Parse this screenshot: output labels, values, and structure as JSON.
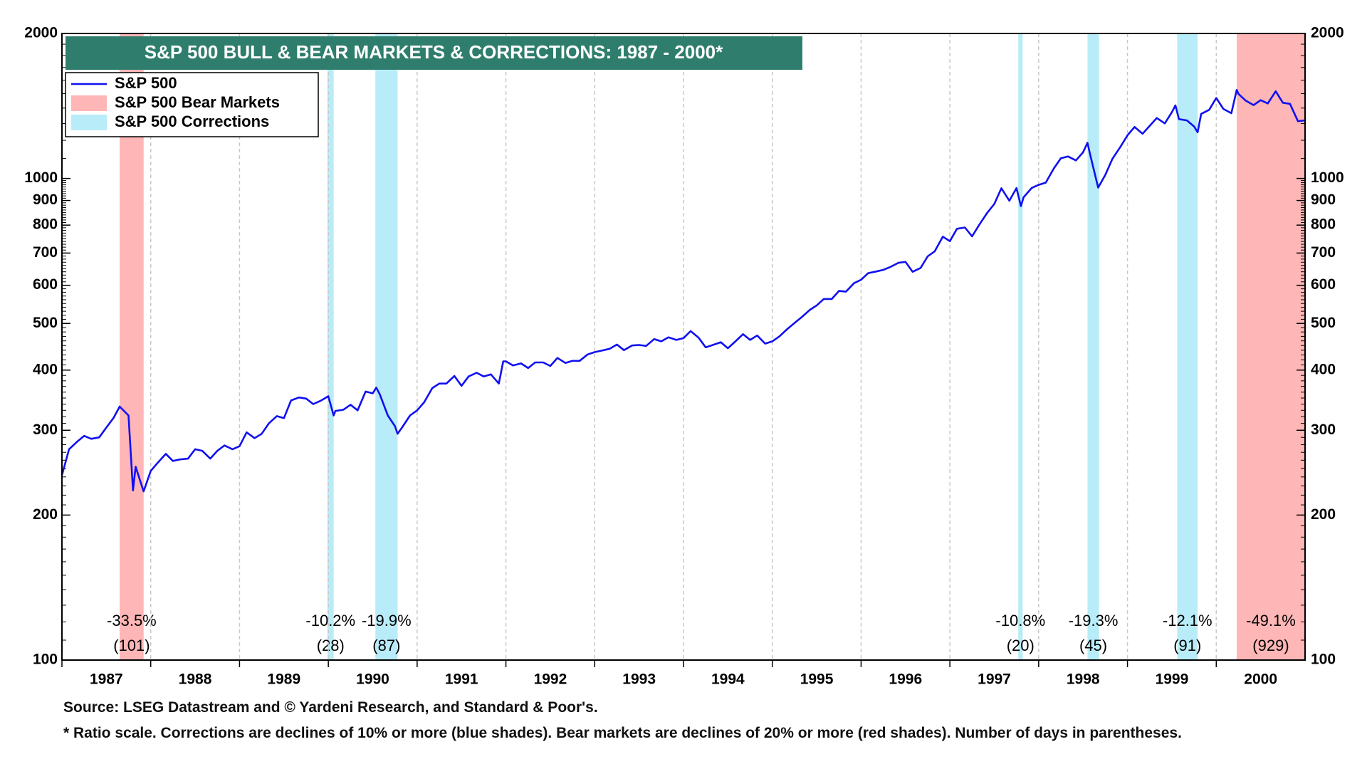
{
  "chart_data": {
    "type": "line",
    "title": "S&P 500 BULL & BEAR MARKETS & CORRECTIONS: 1987 - 2000*",
    "yscale": "log",
    "xgrid": true,
    "legend": "top-left",
    "xlim": [
      1987,
      2001
    ],
    "xticks": [
      1987,
      1988,
      1989,
      1990,
      1991,
      1992,
      1993,
      1994,
      1995,
      1996,
      1997,
      1998,
      1999,
      2000
    ],
    "ylim": [
      100,
      2000
    ],
    "yticks": [
      100,
      200,
      300,
      400,
      500,
      600,
      700,
      800,
      900,
      1000,
      2000
    ],
    "y2lim": [
      100,
      2000
    ],
    "y2ticks": [
      100,
      200,
      300,
      400,
      500,
      600,
      700,
      800,
      900,
      1000,
      2000
    ],
    "x": [
      1987.0,
      1987.08,
      1987.17,
      1987.25,
      1987.33,
      1987.42,
      1987.5,
      1987.58,
      1987.65,
      1987.75,
      1987.8,
      1987.83,
      1987.92,
      1988.0,
      1988.08,
      1988.17,
      1988.25,
      1988.33,
      1988.42,
      1988.5,
      1988.58,
      1988.67,
      1988.75,
      1988.83,
      1988.92,
      1989.0,
      1989.08,
      1989.17,
      1989.25,
      1989.33,
      1989.42,
      1989.5,
      1989.58,
      1989.67,
      1989.75,
      1989.83,
      1989.92,
      1990.0,
      1990.06,
      1990.08,
      1990.17,
      1990.25,
      1990.33,
      1990.42,
      1990.5,
      1990.54,
      1990.58,
      1990.67,
      1990.75,
      1990.78,
      1990.83,
      1990.92,
      1991.0,
      1991.08,
      1991.17,
      1991.25,
      1991.33,
      1991.42,
      1991.5,
      1991.58,
      1991.67,
      1991.75,
      1991.83,
      1991.92,
      1991.97,
      1992.0,
      1992.08,
      1992.17,
      1992.25,
      1992.33,
      1992.42,
      1992.5,
      1992.58,
      1992.67,
      1992.75,
      1992.83,
      1992.92,
      1993.0,
      1993.08,
      1993.17,
      1993.25,
      1993.33,
      1993.42,
      1993.5,
      1993.58,
      1993.67,
      1993.75,
      1993.83,
      1993.92,
      1994.0,
      1994.08,
      1994.17,
      1994.25,
      1994.33,
      1994.42,
      1994.5,
      1994.58,
      1994.67,
      1994.75,
      1994.83,
      1994.92,
      1995.0,
      1995.08,
      1995.17,
      1995.25,
      1995.33,
      1995.42,
      1995.5,
      1995.58,
      1995.67,
      1995.75,
      1995.83,
      1995.92,
      1996.0,
      1996.08,
      1996.17,
      1996.25,
      1996.33,
      1996.42,
      1996.5,
      1996.58,
      1996.67,
      1996.75,
      1996.83,
      1996.92,
      1997.0,
      1997.08,
      1997.17,
      1997.25,
      1997.33,
      1997.42,
      1997.5,
      1997.58,
      1997.67,
      1997.75,
      1997.8,
      1997.83,
      1997.92,
      1998.0,
      1998.08,
      1998.17,
      1998.25,
      1998.33,
      1998.42,
      1998.5,
      1998.55,
      1998.58,
      1998.67,
      1998.75,
      1998.83,
      1998.92,
      1999.0,
      1999.08,
      1999.17,
      1999.25,
      1999.33,
      1999.42,
      1999.5,
      1999.54,
      1999.58,
      1999.67,
      1999.75,
      1999.79,
      1999.83,
      1999.92,
      2000.0,
      2000.08,
      2000.17,
      2000.23,
      2000.25,
      2000.33,
      2000.42,
      2000.5,
      2000.58,
      2000.67,
      2000.75,
      2000.83,
      2000.92,
      2001.0
    ],
    "series": [
      {
        "name": "S&P 500",
        "color": "#1010f0",
        "values": [
          242,
          274,
          284,
          292,
          288,
          290,
          304,
          318,
          336,
          322,
          225,
          252,
          224,
          247,
          257,
          268,
          259,
          261,
          262,
          274,
          272,
          262,
          272,
          279,
          274,
          278,
          297,
          289,
          295,
          310,
          321,
          318,
          346,
          351,
          349,
          340,
          346,
          353,
          322,
          329,
          331,
          339,
          330,
          361,
          358,
          368,
          356,
          322,
          306,
          295,
          304,
          322,
          330,
          343,
          367,
          375,
          375,
          389,
          371,
          388,
          395,
          388,
          392,
          375,
          417,
          417,
          409,
          413,
          404,
          415,
          415,
          408,
          424,
          414,
          418,
          418,
          431,
          436,
          439,
          443,
          452,
          440,
          450,
          451,
          449,
          464,
          459,
          468,
          462,
          466,
          482,
          467,
          446,
          451,
          457,
          444,
          458,
          475,
          462,
          472,
          454,
          459,
          470,
          487,
          501,
          515,
          533,
          545,
          562,
          562,
          584,
          582,
          606,
          616,
          636,
          641,
          646,
          655,
          668,
          671,
          640,
          652,
          689,
          706,
          757,
          741,
          786,
          791,
          758,
          801,
          848,
          885,
          954,
          899,
          955,
          876,
          914,
          955,
          970,
          980,
          1049,
          1101,
          1111,
          1090,
          1133,
          1186,
          1120,
          957,
          1017,
          1098,
          1163,
          1229,
          1279,
          1238,
          1286,
          1335,
          1301,
          1372,
          1418,
          1328,
          1320,
          1282,
          1247,
          1362,
          1388,
          1469,
          1394,
          1366,
          1527,
          1498,
          1452,
          1420,
          1454,
          1431,
          1517,
          1436,
          1429,
          1315,
          1320
        ]
      }
    ],
    "bands": [
      {
        "name": "S&P 500 Bear Markets",
        "color": "#ffb6b6",
        "periods": [
          {
            "start": 1987.65,
            "end": 1987.92,
            "change": "-33.5%",
            "days": "(101)"
          },
          {
            "start": 2000.23,
            "end": 2001.0,
            "change": "-49.1%",
            "days": "(929)"
          }
        ]
      },
      {
        "name": "S&P 500 Corrections",
        "color": "#b8ecf8",
        "periods": [
          {
            "start": 1989.99,
            "end": 1990.06,
            "change": "-10.2%",
            "days": "(28)"
          },
          {
            "start": 1990.53,
            "end": 1990.78,
            "change": "-19.9%",
            "days": "(87)"
          },
          {
            "start": 1997.77,
            "end": 1997.82,
            "change": "-10.8%",
            "days": "(20)"
          },
          {
            "start": 1998.55,
            "end": 1998.68,
            "change": "-19.3%",
            "days": "(45)"
          },
          {
            "start": 1999.56,
            "end": 1999.79,
            "change": "-12.1%",
            "days": "(91)"
          }
        ]
      }
    ],
    "source": "Source: LSEG Datastream and © Yardeni Research, and Standard & Poor's.",
    "note": "* Ratio scale. Corrections are declines of 10% or more (blue shades). Bear markets are declines of 20% or more (red shades). Number of days in parentheses."
  }
}
